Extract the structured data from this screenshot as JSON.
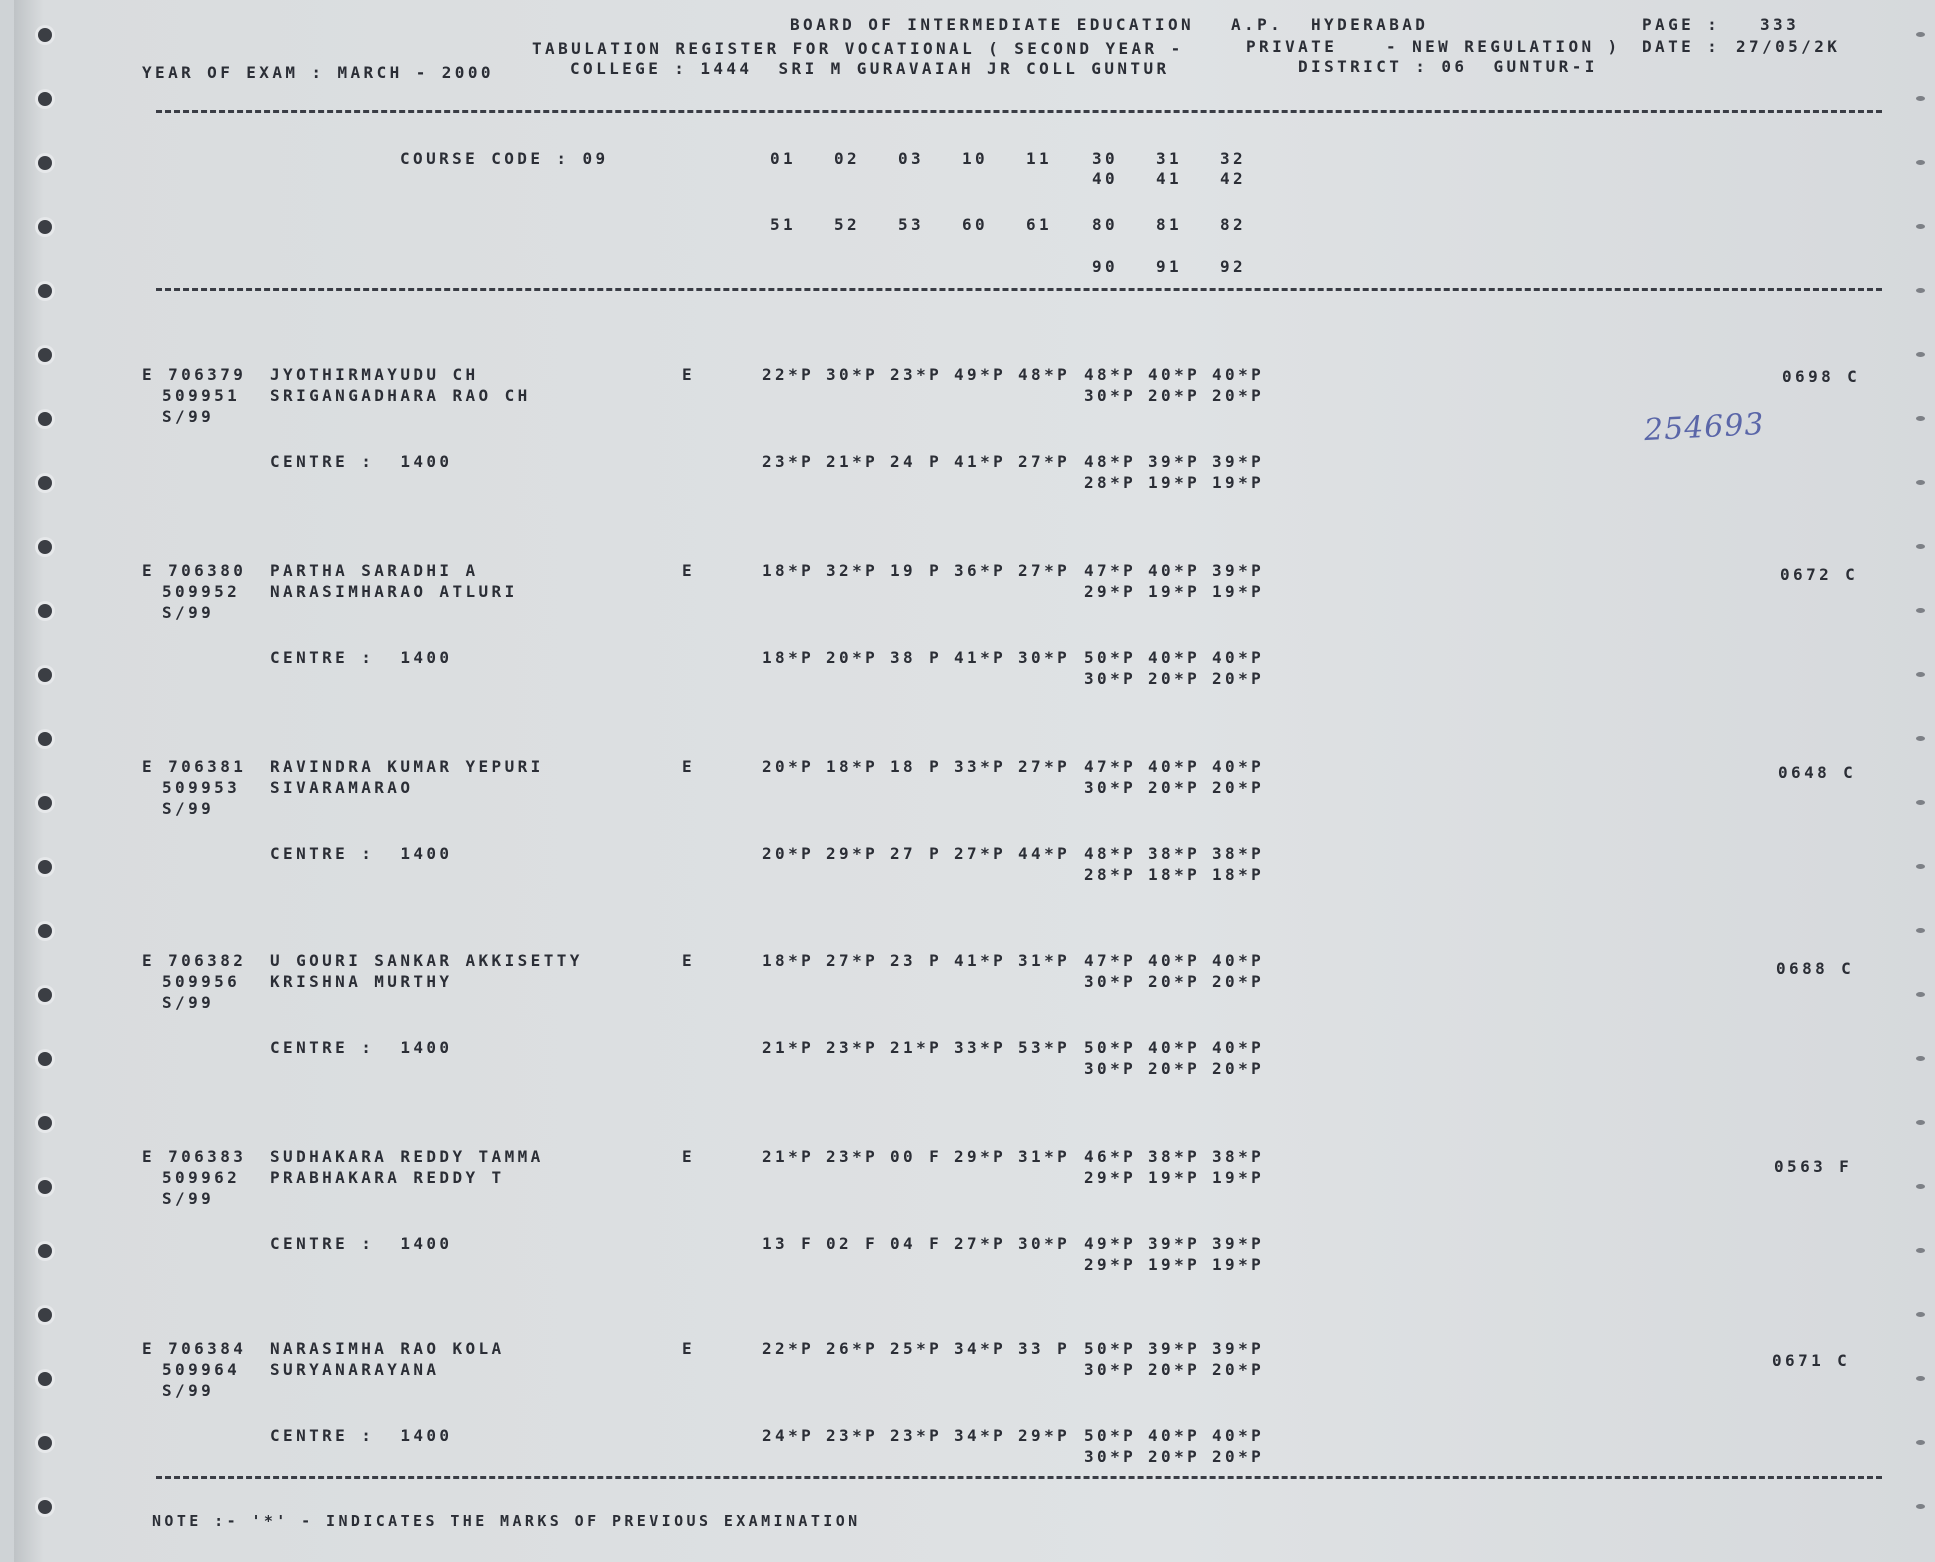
{
  "header": {
    "board": "BOARD OF INTERMEDIATE EDUCATION",
    "state": "A.P.",
    "city": "HYDERABAD",
    "page_label": "PAGE :",
    "page": "333",
    "register": "TABULATION REGISTER FOR VOCATIONAL ( SECOND YEAR -",
    "category": "PRIVATE",
    "regulation": "- NEW REGULATION )",
    "date_label": "DATE :",
    "date": "27/05/2K",
    "exam_year": "YEAR OF EXAM : MARCH - 2000",
    "college": "COLLEGE : 1444  SRI M GURAVAIAH JR COLL GUNTUR",
    "district": "DISTRICT : 06  GUNTUR-I"
  },
  "course": {
    "label": "COURSE CODE : 09",
    "codes_row1": [
      "01",
      "02",
      "03",
      "10",
      "11",
      "30",
      "31",
      "32"
    ],
    "codes_row2": [
      "40",
      "41",
      "42"
    ],
    "codes_row3": [
      "51",
      "52",
      "53",
      "60",
      "61",
      "80",
      "81",
      "82"
    ],
    "codes_row4": [
      "90",
      "91",
      "92"
    ]
  },
  "records": [
    {
      "id": "E 706379",
      "reg": "509951",
      "session": "S/99",
      "name": "JYOTHIRMAYUDU CH",
      "parent": "SRIGANGADHARA RAO CH",
      "medium": "E",
      "centre": "CENTRE :  1400",
      "marks1": [
        "22*P",
        "30*P",
        "23*P",
        "49*P",
        "48*P",
        "48*P",
        "40*P",
        "40*P"
      ],
      "marks1b": [
        "30*P",
        "20*P",
        "20*P"
      ],
      "marks2": [
        "23*P",
        "21*P",
        "24 P",
        "41*P",
        "27*P",
        "48*P",
        "39*P",
        "39*P"
      ],
      "marks2b": [
        "28*P",
        "19*P",
        "19*P"
      ],
      "total": "0698 C"
    },
    {
      "id": "E 706380",
      "reg": "509952",
      "session": "S/99",
      "name": "PARTHA SARADHI A",
      "parent": "NARASIMHARAO ATLURI",
      "medium": "E",
      "centre": "CENTRE :  1400",
      "marks1": [
        "18*P",
        "32*P",
        "19 P",
        "36*P",
        "27*P",
        "47*P",
        "40*P",
        "39*P"
      ],
      "marks1b": [
        "29*P",
        "19*P",
        "19*P"
      ],
      "marks2": [
        "18*P",
        "20*P",
        "38 P",
        "41*P",
        "30*P",
        "50*P",
        "40*P",
        "40*P"
      ],
      "marks2b": [
        "30*P",
        "20*P",
        "20*P"
      ],
      "total": "0672 C"
    },
    {
      "id": "E 706381",
      "reg": "509953",
      "session": "S/99",
      "name": "RAVINDRA KUMAR YEPURI",
      "parent": "SIVARAMARAO",
      "medium": "E",
      "centre": "CENTRE :  1400",
      "marks1": [
        "20*P",
        "18*P",
        "18 P",
        "33*P",
        "27*P",
        "47*P",
        "40*P",
        "40*P"
      ],
      "marks1b": [
        "30*P",
        "20*P",
        "20*P"
      ],
      "marks2": [
        "20*P",
        "29*P",
        "27 P",
        "27*P",
        "44*P",
        "48*P",
        "38*P",
        "38*P"
      ],
      "marks2b": [
        "28*P",
        "18*P",
        "18*P"
      ],
      "total": "0648 C"
    },
    {
      "id": "E 706382",
      "reg": "509956",
      "session": "S/99",
      "name": "U GOURI SANKAR AKKISETTY",
      "parent": "KRISHNA MURTHY",
      "medium": "E",
      "centre": "CENTRE :  1400",
      "marks1": [
        "18*P",
        "27*P",
        "23 P",
        "41*P",
        "31*P",
        "47*P",
        "40*P",
        "40*P"
      ],
      "marks1b": [
        "30*P",
        "20*P",
        "20*P"
      ],
      "marks2": [
        "21*P",
        "23*P",
        "21*P",
        "33*P",
        "53*P",
        "50*P",
        "40*P",
        "40*P"
      ],
      "marks2b": [
        "30*P",
        "20*P",
        "20*P"
      ],
      "total": "0688 C"
    },
    {
      "id": "E 706383",
      "reg": "509962",
      "session": "S/99",
      "name": "SUDHAKARA REDDY TAMMA",
      "parent": "PRABHAKARA REDDY T",
      "medium": "E",
      "centre": "CENTRE :  1400",
      "marks1": [
        "21*P",
        "23*P",
        "00 F",
        "29*P",
        "31*P",
        "46*P",
        "38*P",
        "38*P"
      ],
      "marks1b": [
        "29*P",
        "19*P",
        "19*P"
      ],
      "marks2": [
        "13 F",
        "02 F",
        "04 F",
        "27*P",
        "30*P",
        "49*P",
        "39*P",
        "39*P"
      ],
      "marks2b": [
        "29*P",
        "19*P",
        "19*P"
      ],
      "total": "0563 F"
    },
    {
      "id": "E 706384",
      "reg": "509964",
      "session": "S/99",
      "name": "NARASIMHA RAO KOLA",
      "parent": "SURYANARAYANA",
      "medium": "E",
      "centre": "CENTRE :  1400",
      "marks1": [
        "22*P",
        "26*P",
        "25*P",
        "34*P",
        "33 P",
        "50*P",
        "39*P",
        "39*P"
      ],
      "marks1b": [
        "30*P",
        "20*P",
        "20*P"
      ],
      "marks2": [
        "24*P",
        "23*P",
        "23*P",
        "34*P",
        "29*P",
        "50*P",
        "40*P",
        "40*P"
      ],
      "marks2b": [
        "30*P",
        "20*P",
        "20*P"
      ],
      "total": "0671 C"
    }
  ],
  "note": "NOTE :- '*' - INDICATES THE MARKS OF PREVIOUS EXAMINATION",
  "handwritten": "254693"
}
